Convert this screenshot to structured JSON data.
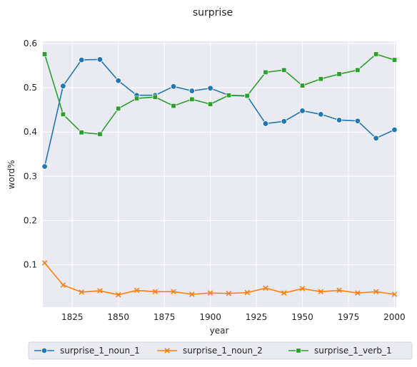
{
  "chart_data": {
    "type": "line",
    "title": "surprise",
    "xlabel": "year",
    "ylabel": "word%",
    "xlim": [
      1809,
      2001
    ],
    "ylim": [
      0.004,
      0.605
    ],
    "xticks": [
      1825,
      1850,
      1875,
      1900,
      1925,
      1950,
      1975,
      2000
    ],
    "xtick_labels": [
      "1825",
      "1850",
      "1875",
      "1900",
      "1925",
      "1950",
      "1975",
      "2000"
    ],
    "yticks": [
      0.1,
      0.2,
      0.3,
      0.4,
      0.5,
      0.6
    ],
    "ytick_labels": [
      "0.1",
      "0.2",
      "0.3",
      "0.4",
      "0.5",
      "0.6"
    ],
    "grid": true,
    "legend_position": "bottom-center",
    "x": [
      1810,
      1820,
      1830,
      1840,
      1850,
      1860,
      1870,
      1880,
      1890,
      1900,
      1910,
      1920,
      1930,
      1940,
      1950,
      1960,
      1970,
      1980,
      1990,
      2000
    ],
    "series": [
      {
        "name": "surprise_1_noun_1",
        "color": "#1f77b4",
        "marker": "circle",
        "values": [
          0.322,
          0.504,
          0.563,
          0.564,
          0.516,
          0.483,
          0.483,
          0.503,
          0.493,
          0.499,
          0.483,
          0.481,
          0.419,
          0.424,
          0.448,
          0.44,
          0.427,
          0.425,
          0.386,
          0.405
        ]
      },
      {
        "name": "surprise_1_noun_2",
        "color": "#ff7f0e",
        "marker": "x",
        "values": [
          0.104,
          0.054,
          0.038,
          0.041,
          0.032,
          0.042,
          0.039,
          0.039,
          0.033,
          0.036,
          0.035,
          0.037,
          0.047,
          0.036,
          0.046,
          0.039,
          0.042,
          0.036,
          0.039,
          0.033
        ]
      },
      {
        "name": "surprise_1_verb_1",
        "color": "#2ca02c",
        "marker": "square",
        "values": [
          0.576,
          0.44,
          0.399,
          0.395,
          0.453,
          0.476,
          0.479,
          0.459,
          0.474,
          0.463,
          0.483,
          0.482,
          0.535,
          0.54,
          0.505,
          0.52,
          0.531,
          0.54,
          0.576,
          0.563
        ]
      }
    ]
  }
}
